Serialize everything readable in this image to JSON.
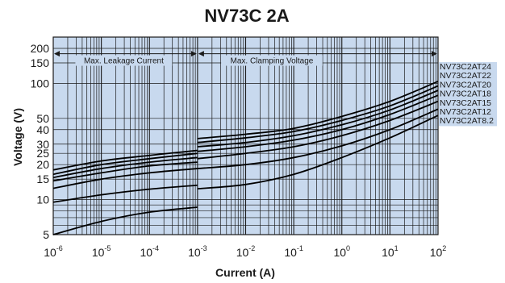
{
  "chart_data": {
    "type": "line",
    "title": "NV73C 2A",
    "xlabel": "Current (A)",
    "ylabel": "Voltage (V)",
    "x_scale": "log",
    "y_scale": "log",
    "xlim": [
      1e-06,
      100
    ],
    "ylim": [
      5,
      250
    ],
    "grid": true,
    "x_ticks": [
      {
        "base": "10",
        "exp": "-6",
        "value": 1e-06
      },
      {
        "base": "10",
        "exp": "-5",
        "value": 1e-05
      },
      {
        "base": "10",
        "exp": "-4",
        "value": 0.0001
      },
      {
        "base": "10",
        "exp": "-3",
        "value": 0.001
      },
      {
        "base": "10",
        "exp": "-2",
        "value": 0.01
      },
      {
        "base": "10",
        "exp": "-1",
        "value": 0.1
      },
      {
        "base": "10",
        "exp": "0",
        "value": 1
      },
      {
        "base": "10",
        "exp": "1",
        "value": 10
      },
      {
        "base": "10",
        "exp": "2",
        "value": 100
      }
    ],
    "y_ticks": [
      {
        "label": "5",
        "value": 5
      },
      {
        "label": "10",
        "value": 10
      },
      {
        "label": "15",
        "value": 15
      },
      {
        "label": "20",
        "value": 20
      },
      {
        "label": "25",
        "value": 25
      },
      {
        "label": "30",
        "value": 30
      },
      {
        "label": "40",
        "value": 40
      },
      {
        "label": "50",
        "value": 50
      },
      {
        "label": "100",
        "value": 100
      },
      {
        "label": "150",
        "value": 150
      },
      {
        "label": "200",
        "value": 200
      }
    ],
    "regions": [
      {
        "label": "Max. Leakage Current",
        "from": 1e-06,
        "to": 0.001
      },
      {
        "label": "Max. Clamping Voltage",
        "from": 0.001,
        "to": 100
      }
    ],
    "series_labels": [
      "NV73C2AT24",
      "NV73C2AT22",
      "NV73C2AT20",
      "NV73C2AT18",
      "NV73C2AT15",
      "NV73C2AT12",
      "NV73C2AT8.2"
    ],
    "series": [
      {
        "name": "NV73C2AT24",
        "leakage": {
          "x": [
            1e-06,
            1e-05,
            0.0001,
            0.001
          ],
          "y": [
            18,
            21.5,
            24,
            26.5
          ]
        },
        "clamping": {
          "x": [
            0.001,
            0.01,
            0.1,
            1,
            10,
            100
          ],
          "y": [
            33.5,
            36.5,
            41,
            52,
            70,
            104
          ]
        }
      },
      {
        "name": "NV73C2AT22",
        "leakage": {
          "x": [
            1e-06,
            1e-05,
            0.0001,
            0.001
          ],
          "y": [
            16.5,
            20,
            22.5,
            25
          ]
        },
        "clamping": {
          "x": [
            0.001,
            0.01,
            0.1,
            1,
            10,
            100
          ],
          "y": [
            31,
            34,
            38.5,
            48,
            64,
            95
          ]
        }
      },
      {
        "name": "NV73C2AT20",
        "leakage": {
          "x": [
            1e-06,
            1e-05,
            0.0001,
            0.001
          ],
          "y": [
            15.5,
            18.5,
            21,
            23
          ]
        },
        "clamping": {
          "x": [
            0.001,
            0.01,
            0.1,
            1,
            10,
            100
          ],
          "y": [
            28.5,
            31,
            35.5,
            44,
            59,
            87
          ]
        }
      },
      {
        "name": "NV73C2AT18",
        "leakage": {
          "x": [
            1e-06,
            1e-05,
            0.0001,
            0.001
          ],
          "y": [
            14.5,
            17,
            19.5,
            21
          ]
        },
        "clamping": {
          "x": [
            0.001,
            0.01,
            0.1,
            1,
            10,
            100
          ],
          "y": [
            26,
            28.5,
            32.5,
            40,
            54,
            79
          ]
        }
      },
      {
        "name": "NV73C2AT15",
        "leakage": {
          "x": [
            1e-06,
            1e-05,
            0.0001,
            0.001
          ],
          "y": [
            12.5,
            15,
            17,
            18.5
          ]
        },
        "clamping": {
          "x": [
            0.001,
            0.01,
            0.1,
            1,
            10,
            100
          ],
          "y": [
            22.5,
            25,
            28.5,
            35.5,
            48,
            70
          ]
        }
      },
      {
        "name": "NV73C2AT12",
        "leakage": {
          "x": [
            1e-06,
            1e-05,
            0.0001,
            0.001
          ],
          "y": [
            9.5,
            11,
            12.3,
            13.3
          ]
        },
        "clamping": {
          "x": [
            0.001,
            0.01,
            0.1,
            1,
            10,
            100
          ],
          "y": [
            18.5,
            20,
            23,
            29,
            40,
            60
          ]
        }
      },
      {
        "name": "NV73C2AT8.2",
        "leakage": {
          "x": [
            1e-06,
            1e-05,
            0.0001,
            0.001
          ],
          "y": [
            5,
            6.5,
            7.8,
            8.6
          ]
        },
        "clamping": {
          "x": [
            0.001,
            0.01,
            0.1,
            1,
            10,
            100
          ],
          "y": [
            12.4,
            13.5,
            16.5,
            23,
            34,
            53
          ]
        }
      }
    ]
  }
}
